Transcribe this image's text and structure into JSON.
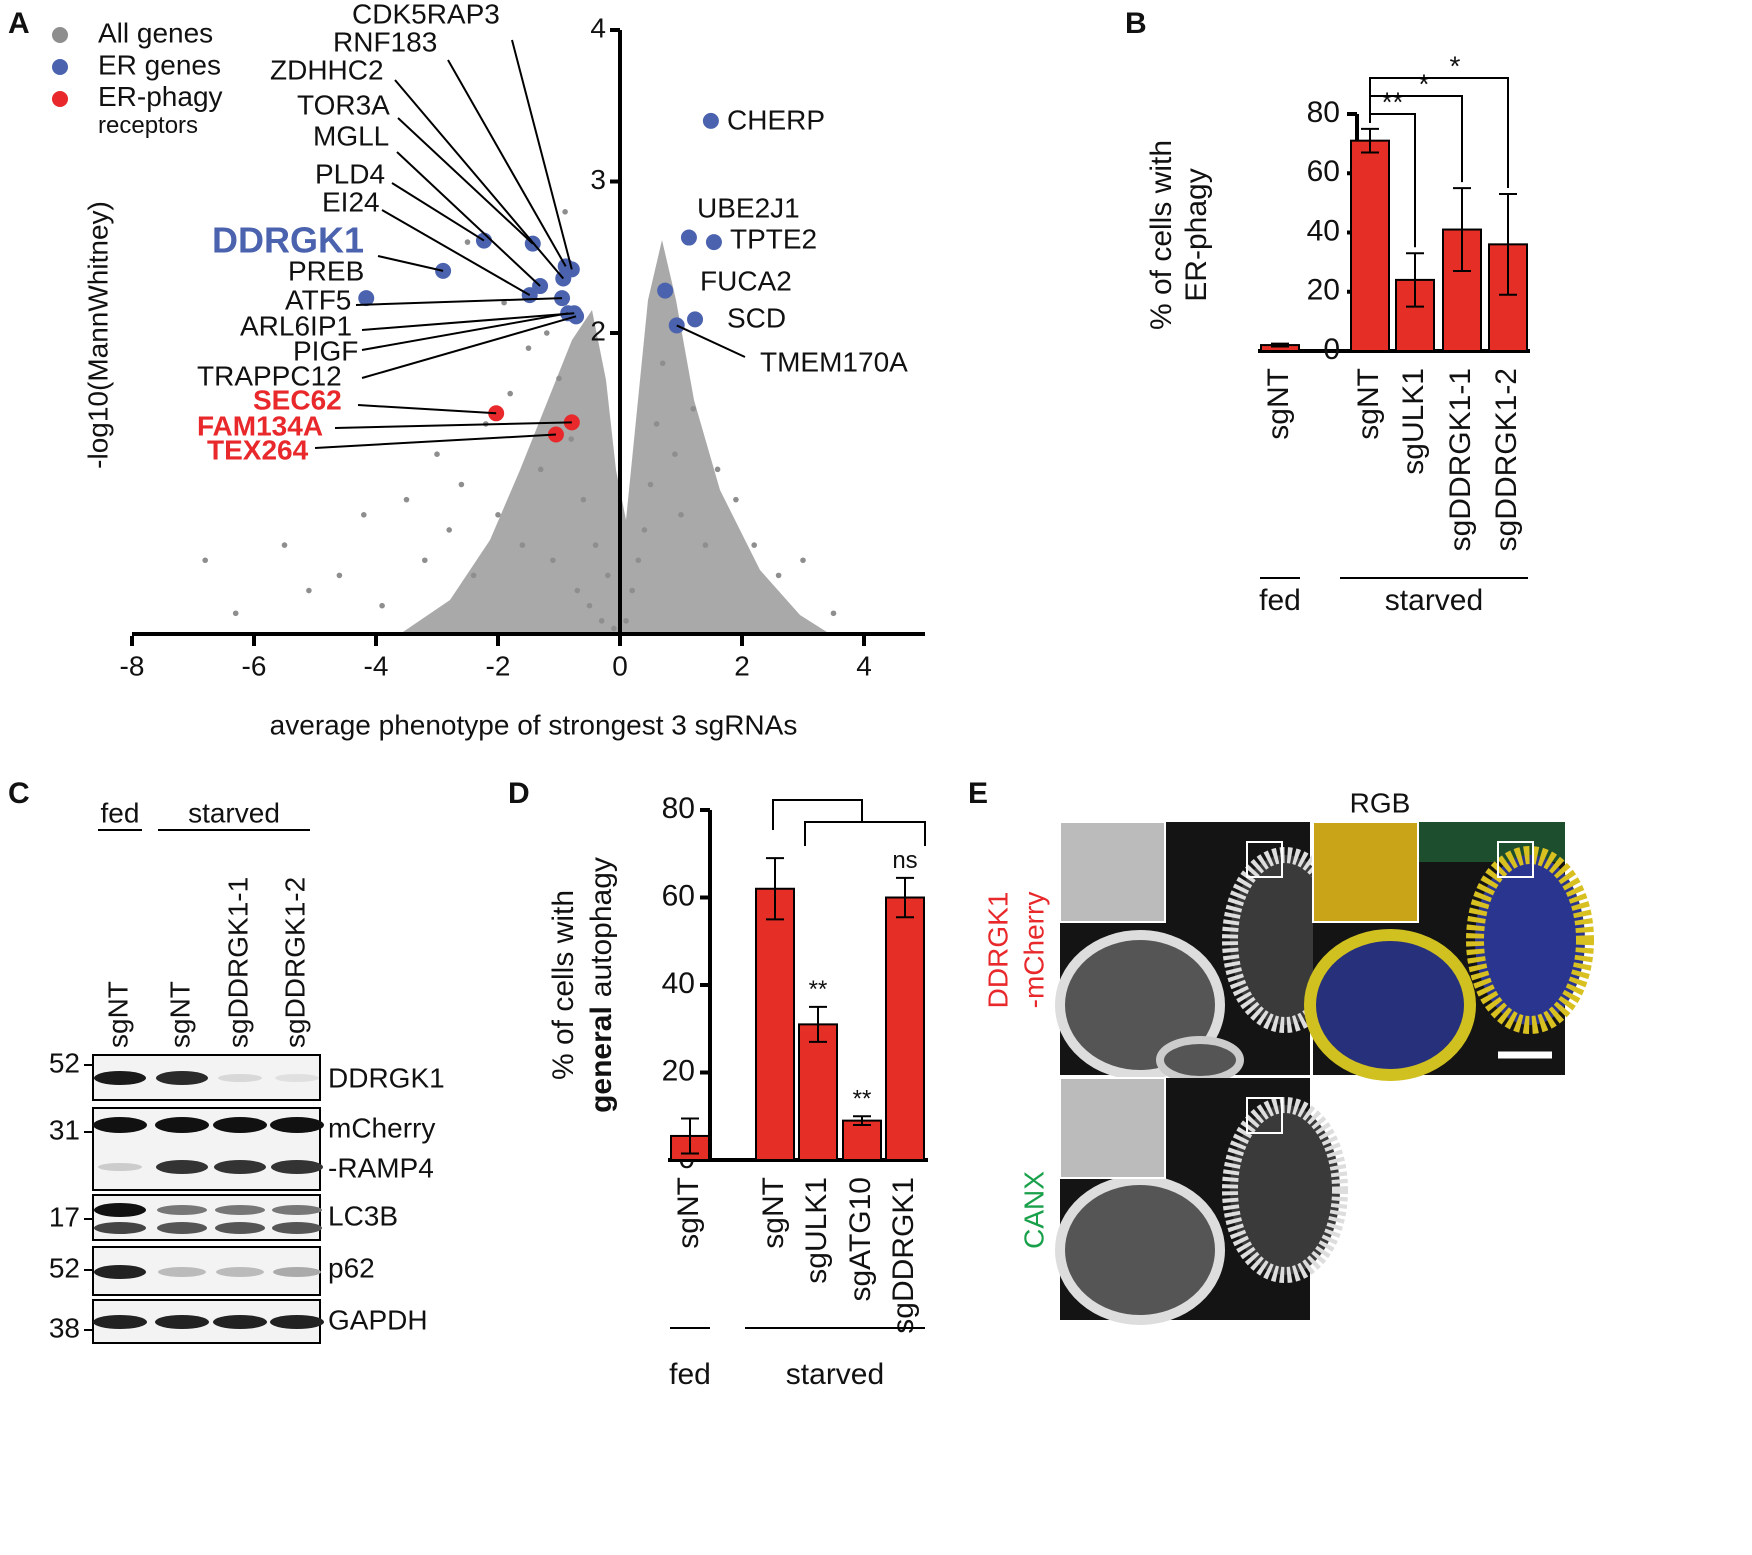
{
  "panel_labels": [
    "A",
    "B",
    "C",
    "D",
    "E"
  ],
  "chart_data": [
    {
      "type": "scatter",
      "xlabel": "average phenotype of strongest 3 sgRNAs",
      "ylabel": "-log10(MannWhitney)",
      "xlim": [
        -8,
        5
      ],
      "ylim": [
        0,
        4
      ],
      "xticks": [
        -8,
        -6,
        -4,
        -2,
        0,
        2,
        4
      ],
      "yticks": [
        2,
        3,
        4
      ],
      "series": [
        {
          "name": "All genes",
          "color": "#8e8e8e",
          "x": [
            -6.8,
            -6.3,
            -5.5,
            -5.1,
            -4.6,
            -4.2,
            -3.9,
            -3.5,
            -3.2,
            -3.0,
            -2.8,
            -2.6,
            -2.4,
            -2.2,
            -2.0,
            -1.8,
            -1.6,
            -1.5,
            -1.3,
            -1.2,
            -1.1,
            -1.0,
            -0.9,
            -0.8,
            -0.7,
            -0.6,
            -0.5,
            -0.4,
            -0.3,
            -0.2,
            -0.1,
            0.1,
            0.2,
            0.3,
            0.4,
            0.5,
            0.6,
            0.7,
            0.8,
            0.9,
            1.0,
            1.2,
            1.4,
            1.6,
            1.9,
            2.2,
            2.6,
            3.0,
            3.5,
            -1.9,
            -2.5,
            -0.9
          ],
          "y": [
            0.5,
            0.15,
            0.6,
            0.3,
            0.4,
            0.8,
            0.2,
            0.9,
            0.5,
            1.2,
            0.7,
            1.0,
            0.4,
            1.4,
            0.8,
            1.6,
            0.6,
            1.9,
            1.1,
            2.0,
            0.5,
            1.7,
            2.2,
            1.3,
            0.3,
            0.9,
            0.2,
            0.6,
            0.1,
            0.4,
            0.05,
            0.1,
            0.3,
            0.5,
            0.7,
            1.0,
            1.4,
            1.8,
            2.3,
            1.2,
            0.8,
            1.5,
            0.6,
            1.1,
            0.9,
            0.6,
            0.4,
            0.5,
            0.15,
            2.2,
            2.6,
            2.8
          ]
        },
        {
          "name": "ER genes",
          "color": "#4b63ae",
          "labels": [
            "CDK5RAP3",
            "RNF183",
            "ZDHHC2",
            "TOR3A",
            "MGLL",
            "PLD4",
            "EI24",
            "DDRGK1",
            "PREB",
            "ATF5",
            "ARL6IP1",
            "PIGF",
            "TRAPPC12",
            "CHERP",
            "UBE2J1",
            "TPTE2",
            "FUCA2",
            "SCD",
            "TMEM170A"
          ],
          "x": [
            -0.79,
            -0.89,
            -0.93,
            -1.43,
            -1.31,
            -2.23,
            -1.48,
            -2.9,
            -4.16,
            -0.95,
            -0.75,
            -0.85,
            -0.72,
            1.49,
            1.13,
            1.54,
            0.74,
            1.23,
            0.93
          ],
          "y": [
            2.42,
            2.44,
            2.36,
            2.59,
            2.31,
            2.61,
            2.25,
            2.41,
            2.23,
            2.23,
            2.13,
            2.13,
            2.11,
            3.4,
            2.63,
            2.6,
            2.28,
            2.09,
            2.05
          ]
        },
        {
          "name": "ER-phagy receptors",
          "color": "#e8282b",
          "labels": [
            "SEC62",
            "FAM134A",
            "TEX264"
          ],
          "x": [
            -2.03,
            -0.79,
            -1.05
          ],
          "y": [
            1.47,
            1.41,
            1.33
          ]
        }
      ]
    },
    {
      "type": "bar",
      "ylabel": [
        "% of cells with",
        "ER-phagy"
      ],
      "categories": [
        "sgNT",
        "sgNT",
        "sgULK1",
        "sgDDRGK1-1",
        "sgDDRGK1-2"
      ],
      "groups": [
        "fed",
        "starved"
      ],
      "values": [
        2,
        71,
        24,
        41,
        36
      ],
      "errors": [
        0.5,
        4,
        9,
        14,
        17
      ],
      "annotations": [
        null,
        null,
        "**",
        "*",
        "*"
      ],
      "color": "#e52f26",
      "ylim": [
        0,
        80
      ],
      "yticks": [
        0,
        20,
        40,
        60,
        80
      ]
    },
    {
      "type": "bar",
      "ylabel": [
        "% of cells with",
        "general",
        "autophagy"
      ],
      "categories": [
        "sgNT",
        "sgNT",
        "sgULK1",
        "sgATG10",
        "sgDDRGK1"
      ],
      "groups": [
        "fed",
        "starved"
      ],
      "values": [
        5.5,
        62,
        31,
        9,
        60
      ],
      "errors": [
        4,
        7,
        4,
        1,
        4.5
      ],
      "annotations": [
        null,
        null,
        "**",
        "**",
        "ns"
      ],
      "color": "#e52f26",
      "ylim": [
        0,
        80
      ],
      "yticks": [
        0,
        20,
        40,
        60,
        80
      ]
    }
  ],
  "blot": {
    "groups": [
      "fed",
      "starved"
    ],
    "lanes": [
      "sgNT",
      "sgNT",
      "sgDDRGK1-1",
      "sgDDRGK1-2"
    ],
    "markers": [
      52,
      31,
      17,
      52,
      38
    ],
    "bands": [
      "DDRGK1",
      "mCherry",
      "-RAMP4",
      "LC3B",
      "p62",
      "GAPDH"
    ]
  },
  "microscopy": {
    "title": "RGB",
    "channels": [
      "DDRGK1",
      "-mCherry",
      "CANX"
    ]
  }
}
